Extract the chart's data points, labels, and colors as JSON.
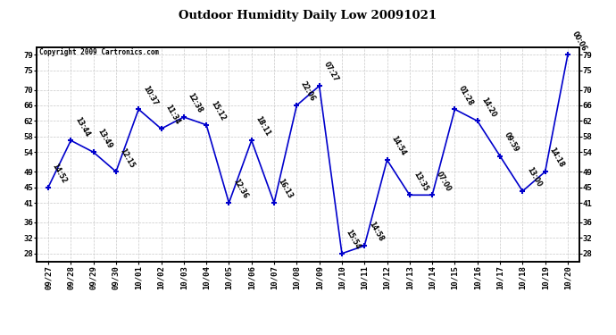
{
  "title": "Outdoor Humidity Daily Low 20091021",
  "copyright": "Copyright 2009 Cartronics.com",
  "background_color": "#ffffff",
  "line_color": "#0000cc",
  "grid_color": "#c8c8c8",
  "points": [
    {
      "date": "09/27",
      "value": 45,
      "time": "14:52"
    },
    {
      "date": "09/28",
      "value": 57,
      "time": "13:44"
    },
    {
      "date": "09/29",
      "value": 54,
      "time": "13:49"
    },
    {
      "date": "09/30",
      "value": 49,
      "time": "12:15"
    },
    {
      "date": "10/01",
      "value": 65,
      "time": "10:37"
    },
    {
      "date": "10/02",
      "value": 60,
      "time": "11:34"
    },
    {
      "date": "10/03",
      "value": 63,
      "time": "12:38"
    },
    {
      "date": "10/04",
      "value": 61,
      "time": "15:12"
    },
    {
      "date": "10/05",
      "value": 41,
      "time": "12:36"
    },
    {
      "date": "10/06",
      "value": 57,
      "time": "18:11"
    },
    {
      "date": "10/07",
      "value": 41,
      "time": "16:13"
    },
    {
      "date": "10/08",
      "value": 66,
      "time": "22:06"
    },
    {
      "date": "10/09",
      "value": 71,
      "time": "07:27"
    },
    {
      "date": "10/10",
      "value": 28,
      "time": "15:54"
    },
    {
      "date": "10/11",
      "value": 30,
      "time": "14:58"
    },
    {
      "date": "10/12",
      "value": 52,
      "time": "14:54"
    },
    {
      "date": "10/13",
      "value": 43,
      "time": "13:35"
    },
    {
      "date": "10/14",
      "value": 43,
      "time": "07:00"
    },
    {
      "date": "10/15",
      "value": 65,
      "time": "01:28"
    },
    {
      "date": "10/16",
      "value": 62,
      "time": "14:20"
    },
    {
      "date": "10/17",
      "value": 53,
      "time": "09:59"
    },
    {
      "date": "10/18",
      "value": 44,
      "time": "13:00"
    },
    {
      "date": "10/19",
      "value": 49,
      "time": "14:18"
    },
    {
      "date": "10/20",
      "value": 79,
      "time": "00:06"
    }
  ],
  "yticks": [
    28,
    32,
    36,
    41,
    45,
    49,
    54,
    58,
    62,
    66,
    70,
    75,
    79
  ],
  "ylim_min": 26,
  "ylim_max": 81,
  "figwidth": 6.9,
  "figheight": 3.75,
  "dpi": 100
}
